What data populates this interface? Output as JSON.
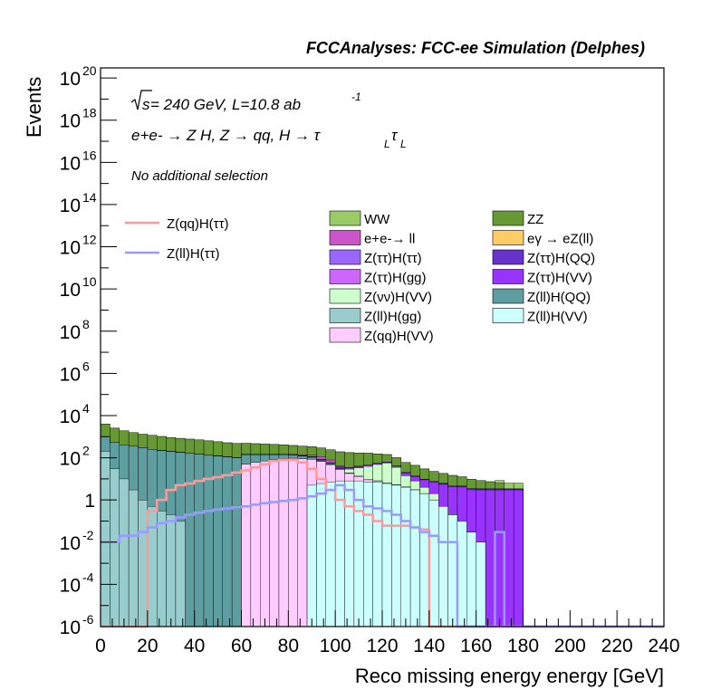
{
  "chart_data": {
    "type": "area",
    "title": "FCCAnalyses: FCC-ee Simulation (Delphes)",
    "xlabel": "Reco missing energy energy [GeV]",
    "ylabel": "Events",
    "xlim": [
      0,
      240
    ],
    "ylim": [
      1e-06,
      3e+20
    ],
    "log_y": true,
    "grid": false,
    "x_ticks": [
      "0",
      "20",
      "40",
      "60",
      "80",
      "100",
      "120",
      "140",
      "160",
      "180",
      "200",
      "220",
      "240"
    ],
    "y_ticks": [
      {
        "base": "10",
        "exp": "-6"
      },
      {
        "base": "10",
        "exp": "-4"
      },
      {
        "base": "10",
        "exp": "-2"
      },
      {
        "base": "1",
        "exp": ""
      },
      {
        "base": "10",
        "exp": "2"
      },
      {
        "base": "10",
        "exp": "4"
      },
      {
        "base": "10",
        "exp": "6"
      },
      {
        "base": "10",
        "exp": "8"
      },
      {
        "base": "10",
        "exp": "10"
      },
      {
        "base": "10",
        "exp": "12"
      },
      {
        "base": "10",
        "exp": "14"
      },
      {
        "base": "10",
        "exp": "16"
      },
      {
        "base": "10",
        "exp": "18"
      },
      {
        "base": "10",
        "exp": "20"
      }
    ],
    "annotations": {
      "energy_sqrt": "s",
      "energy_rest": " = 240 GeV, L=10.8 ab",
      "energy_sup": "-1",
      "process": "e⁺e⁻ → Z H, Z → qq, H → τ_L τ_L",
      "process_main": "e+e- → Z H, Z → qq, H → τ",
      "process_tail": "τ",
      "process_sub": "L",
      "selection": "No additional selection"
    },
    "bin_edges": [
      0,
      4,
      8,
      12,
      16,
      20,
      24,
      28,
      32,
      36,
      40,
      44,
      48,
      52,
      56,
      60,
      64,
      68,
      72,
      76,
      80,
      84,
      88,
      92,
      96,
      100,
      104,
      108,
      112,
      116,
      120,
      124,
      128,
      132,
      136,
      140,
      144,
      148,
      152,
      156,
      160,
      164,
      168,
      172,
      176,
      180,
      184
    ],
    "stack": [
      {
        "name": "Z(ll)H(VV)",
        "color": "#ccffff",
        "values": [
          0,
          0,
          0,
          0,
          0,
          0,
          0,
          0,
          0,
          0,
          0,
          0,
          0,
          0,
          0,
          0,
          0,
          0,
          0,
          0,
          0,
          0,
          5,
          6,
          7,
          8,
          8,
          8,
          7,
          7,
          6,
          5,
          4,
          3,
          2,
          1,
          0.5,
          0.2,
          0.1,
          0.03,
          0.01,
          0,
          0,
          0,
          0,
          0
        ]
      },
      {
        "name": "Z(qq)H(VV)",
        "color": "#ffccff",
        "values": [
          0,
          0,
          0,
          0,
          0,
          0,
          0,
          0,
          0,
          0,
          0,
          0,
          0,
          0,
          0,
          50,
          60,
          70,
          80,
          90,
          95,
          90,
          80,
          60,
          40,
          20,
          10,
          5,
          2,
          1,
          0.5,
          0.2,
          0.1,
          0,
          0,
          0,
          0,
          0,
          0,
          0,
          0,
          0,
          0,
          0,
          0,
          0
        ]
      },
      {
        "name": "Z(ll)H(gg)",
        "color": "#99cccc",
        "values": [
          200,
          30,
          10,
          3,
          1,
          0.5,
          0.3,
          0.2,
          0.1,
          0,
          0,
          0,
          0,
          0,
          0,
          0,
          0,
          0,
          0,
          0,
          0,
          0,
          0,
          0,
          0,
          0,
          0,
          0,
          0,
          0,
          0,
          0,
          0,
          0,
          0,
          0,
          0,
          0,
          0,
          0,
          0,
          0,
          0,
          0,
          0,
          0
        ]
      },
      {
        "name": "Z(ll)H(QQ)",
        "color": "#5f9ea0",
        "values": [
          800,
          500,
          400,
          350,
          300,
          250,
          220,
          200,
          180,
          160,
          150,
          130,
          120,
          110,
          100,
          90,
          80,
          70,
          60,
          50,
          40,
          30,
          20,
          10,
          5,
          2,
          1,
          0.5,
          0.2,
          0.1,
          0,
          0,
          0,
          0,
          0,
          0,
          0,
          0,
          0,
          0,
          0,
          0,
          0,
          0,
          0,
          0
        ]
      },
      {
        "name": "Z(νν)H(VV)",
        "color": "#ccffcc",
        "values": [
          0,
          0,
          0,
          0,
          0,
          0,
          0,
          0,
          0,
          0,
          0,
          0,
          0,
          0,
          0,
          0,
          0,
          0,
          0,
          0,
          0,
          0,
          0,
          0,
          0,
          0,
          10,
          20,
          30,
          40,
          50,
          30,
          10,
          5,
          2,
          1,
          0,
          0,
          0,
          0,
          0,
          0,
          0,
          0,
          0,
          0
        ]
      },
      {
        "name": "Z(ττ)H(VV)",
        "color": "#9933ff",
        "values": [
          0,
          0,
          0,
          0.3,
          0.3,
          0.4,
          0.5,
          0.6,
          0.8,
          1,
          1.2,
          1.5,
          1.8,
          2,
          2.5,
          3,
          3.5,
          4,
          4.5,
          5,
          5,
          5,
          5,
          5,
          5,
          5,
          5,
          5,
          5,
          5,
          5,
          5,
          5,
          5,
          5,
          5,
          5,
          4,
          4,
          3,
          3,
          3,
          3,
          3,
          3,
          0
        ]
      },
      {
        "name": "Z(ττ)H(QQ)",
        "color": "#6633cc",
        "values": [
          0,
          0,
          0,
          0.06,
          0.06,
          0.08,
          0.1,
          0.12,
          0.15,
          0.2,
          0.2,
          0.25,
          0.3,
          0.3,
          0.35,
          0.35,
          0.4,
          0.4,
          0.4,
          0.45,
          0.45,
          0.45,
          0.45,
          0.5,
          0.5,
          0.5,
          0.5,
          0.5,
          0.5,
          0.5,
          0.5,
          0.5,
          0.5,
          0.5,
          0.5,
          0.5,
          0.5,
          0.4,
          0.4,
          0.4,
          0.3,
          0.3,
          0.3,
          0.3,
          0.3,
          0
        ]
      },
      {
        "name": "Z(ττ)H(gg)",
        "color": "#cc66ff",
        "values": [
          0,
          0,
          0,
          0.01,
          0.01,
          0.012,
          0.012,
          0.012,
          0.012,
          0.012,
          0.012,
          0.012,
          0.012,
          0.012,
          0.012,
          0.012,
          0.012,
          0.012,
          0.012,
          0,
          0,
          0,
          0,
          0,
          0,
          0,
          0,
          0,
          0,
          0,
          0,
          0,
          0,
          0,
          0,
          0,
          0,
          0,
          0,
          0,
          0,
          0,
          0,
          0,
          0,
          0
        ]
      },
      {
        "name": "Z(ττ)H(ττ)",
        "color": "#9966ff",
        "values": [
          0,
          0,
          0,
          0.01,
          0.01,
          0.01,
          0.012,
          0.012,
          0.012,
          0.012,
          0.012,
          0.012,
          0.012,
          0.012,
          0.012,
          0.012,
          0.012,
          0.012,
          0.012,
          0.012,
          0.012,
          0.012,
          0.012,
          0.012,
          0.012,
          0.012,
          0.012,
          0.012,
          0.012,
          0.012,
          0.012,
          0.012,
          0.012,
          0.012,
          0.012,
          0.012,
          0.012,
          0.012,
          0.012,
          0.012,
          0.012,
          0.012,
          0.012,
          0.012,
          0.012,
          0
        ]
      },
      {
        "name": "eγ → eZ(ll)",
        "color": "#ffcc66",
        "values": [
          0.003,
          0.5,
          0,
          0.3,
          0.4,
          0.3,
          0.5,
          0.6,
          0.6,
          0.8,
          0.9,
          0.9,
          1,
          1,
          1,
          1,
          1,
          1,
          1.2,
          1.2,
          1.3,
          1.5,
          1.8,
          2,
          1,
          0.5,
          0.3,
          0.2,
          0.1,
          0,
          0,
          0,
          0,
          0,
          0,
          0,
          0,
          0,
          0,
          0,
          0,
          0,
          0,
          0,
          0,
          0
        ]
      },
      {
        "name": "e+e-→ ll",
        "color": "#cc55cc",
        "values": [
          0,
          0,
          0,
          0,
          0,
          0,
          0,
          0,
          0,
          0,
          0,
          0,
          0,
          0,
          0,
          0,
          0,
          0,
          0,
          0,
          0,
          10,
          20,
          30,
          20,
          5,
          0,
          0,
          0,
          0,
          0,
          0,
          0,
          0,
          0,
          0,
          0,
          0,
          0,
          0,
          0,
          0,
          0,
          0,
          0,
          0
        ]
      },
      {
        "name": "ZZ",
        "color": "#669933",
        "values": [
          3000,
          2000,
          1500,
          1200,
          1000,
          900,
          800,
          700,
          650,
          600,
          550,
          500,
          450,
          400,
          370,
          340,
          320,
          300,
          280,
          260,
          240,
          220,
          200,
          180,
          160,
          150,
          140,
          130,
          120,
          100,
          80,
          60,
          40,
          30,
          20,
          15,
          12,
          10,
          8,
          6,
          5,
          4,
          3,
          0,
          0,
          0
        ]
      },
      {
        "name": "WW",
        "color": "#99cc66",
        "values": [
          0,
          0,
          0,
          0,
          0,
          0,
          0,
          0,
          0,
          0,
          0,
          0,
          0,
          0,
          0,
          0,
          0,
          0,
          0,
          0,
          0,
          0,
          0,
          0,
          0,
          0,
          0,
          0,
          0,
          0,
          0,
          0,
          0,
          0,
          0,
          0,
          0,
          0,
          0,
          0,
          0,
          0,
          2,
          3,
          3,
          0
        ]
      }
    ],
    "signals": [
      {
        "name": "Z(qq)H(ττ)",
        "color": "#ff9999",
        "values": [
          0,
          0,
          0,
          0,
          0,
          0.3,
          1,
          3,
          5,
          6,
          8,
          10,
          12,
          15,
          20,
          25,
          35,
          50,
          70,
          80,
          80,
          60,
          30,
          10,
          3,
          1,
          0.5,
          0.3,
          0.2,
          0.1,
          0.06,
          0.06,
          0.06,
          0.05,
          0.04,
          0,
          0,
          0,
          0,
          0,
          0,
          0,
          0,
          0,
          0,
          0
        ]
      },
      {
        "name": "Z(ll)H(ττ)",
        "color": "#9999ff",
        "values": [
          0.01,
          0.01,
          0.02,
          0.02,
          0.03,
          0.05,
          0.08,
          0.1,
          0.15,
          0.2,
          0.25,
          0.3,
          0.35,
          0.4,
          0.45,
          0.5,
          0.6,
          0.7,
          0.8,
          0.9,
          1,
          1.2,
          1.5,
          2,
          3,
          5,
          3,
          1,
          0.5,
          0.4,
          0.3,
          0.2,
          0.1,
          0.05,
          0.03,
          0.02,
          0.01,
          0.01,
          0,
          0,
          0,
          0,
          0.03,
          0,
          0,
          0
        ]
      }
    ],
    "legend": {
      "placement": "top-right",
      "columns": [
        [
          "WW",
          "e+e-→ ll",
          "Z(ττ)H(ττ)",
          "Z(ττ)H(gg)",
          "Z(νν)H(VV)",
          "Z(ll)H(gg)",
          "Z(qq)H(VV)"
        ],
        [
          "ZZ",
          "eγ → eZ(ll)",
          "Z(ττ)H(QQ)",
          "Z(ττ)H(VV)",
          "Z(ll)H(QQ)",
          "Z(ll)H(VV)"
        ]
      ],
      "signal_entries": [
        "Z(qq)H(ττ)",
        "Z(ll)H(ττ)"
      ]
    }
  }
}
